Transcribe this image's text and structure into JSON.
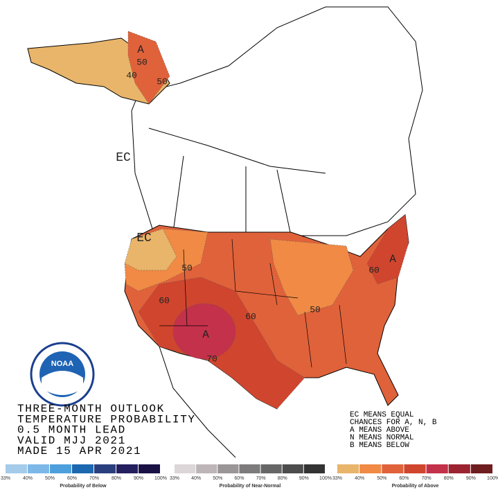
{
  "title_lines": [
    "THREE-MONTH OUTLOOK",
    "TEMPERATURE PROBABILITY",
    "0.5 MONTH LEAD",
    "VALID MJJ 2021",
    "MADE 15 APR 2021"
  ],
  "key_lines": [
    "EC MEANS EQUAL",
    "CHANCES FOR A, N, B",
    "A MEANS ABOVE",
    "N MEANS NORMAL",
    "B MEANS BELOW"
  ],
  "map_labels": [
    "A",
    "50",
    "40",
    "50",
    "EC",
    "EC",
    "50",
    "60",
    "A",
    "70",
    "60",
    "50",
    "60",
    "A"
  ],
  "logo": "NOAA",
  "legends": [
    {
      "title": "Probability of Below",
      "ticks": [
        "33%",
        "40%",
        "50%",
        "60%",
        "70%",
        "80%",
        "90%",
        "100%"
      ],
      "colors": [
        "#a4cbea",
        "#7db8e8",
        "#4ea0dd",
        "#1c68b0",
        "#2a3f7e",
        "#241f5e",
        "#1a1245"
      ]
    },
    {
      "title": "Probability of Near-Normal",
      "ticks": [
        "33%",
        "40%",
        "50%",
        "60%",
        "70%",
        "80%",
        "90%",
        "100%"
      ],
      "colors": [
        "#ddd6d8",
        "#bdb5b8",
        "#9a9596",
        "#7d7b7b",
        "#666666",
        "#4d4d4d",
        "#333333"
      ]
    },
    {
      "title": "Probability of Above",
      "ticks": [
        "33%",
        "40%",
        "50%",
        "60%",
        "70%",
        "80%",
        "90%",
        "100%"
      ],
      "colors": [
        "#e8b56a",
        "#f08a45",
        "#e0623a",
        "#d0452e",
        "#c4314a",
        "#9b2430",
        "#6e1e1e"
      ]
    }
  ]
}
